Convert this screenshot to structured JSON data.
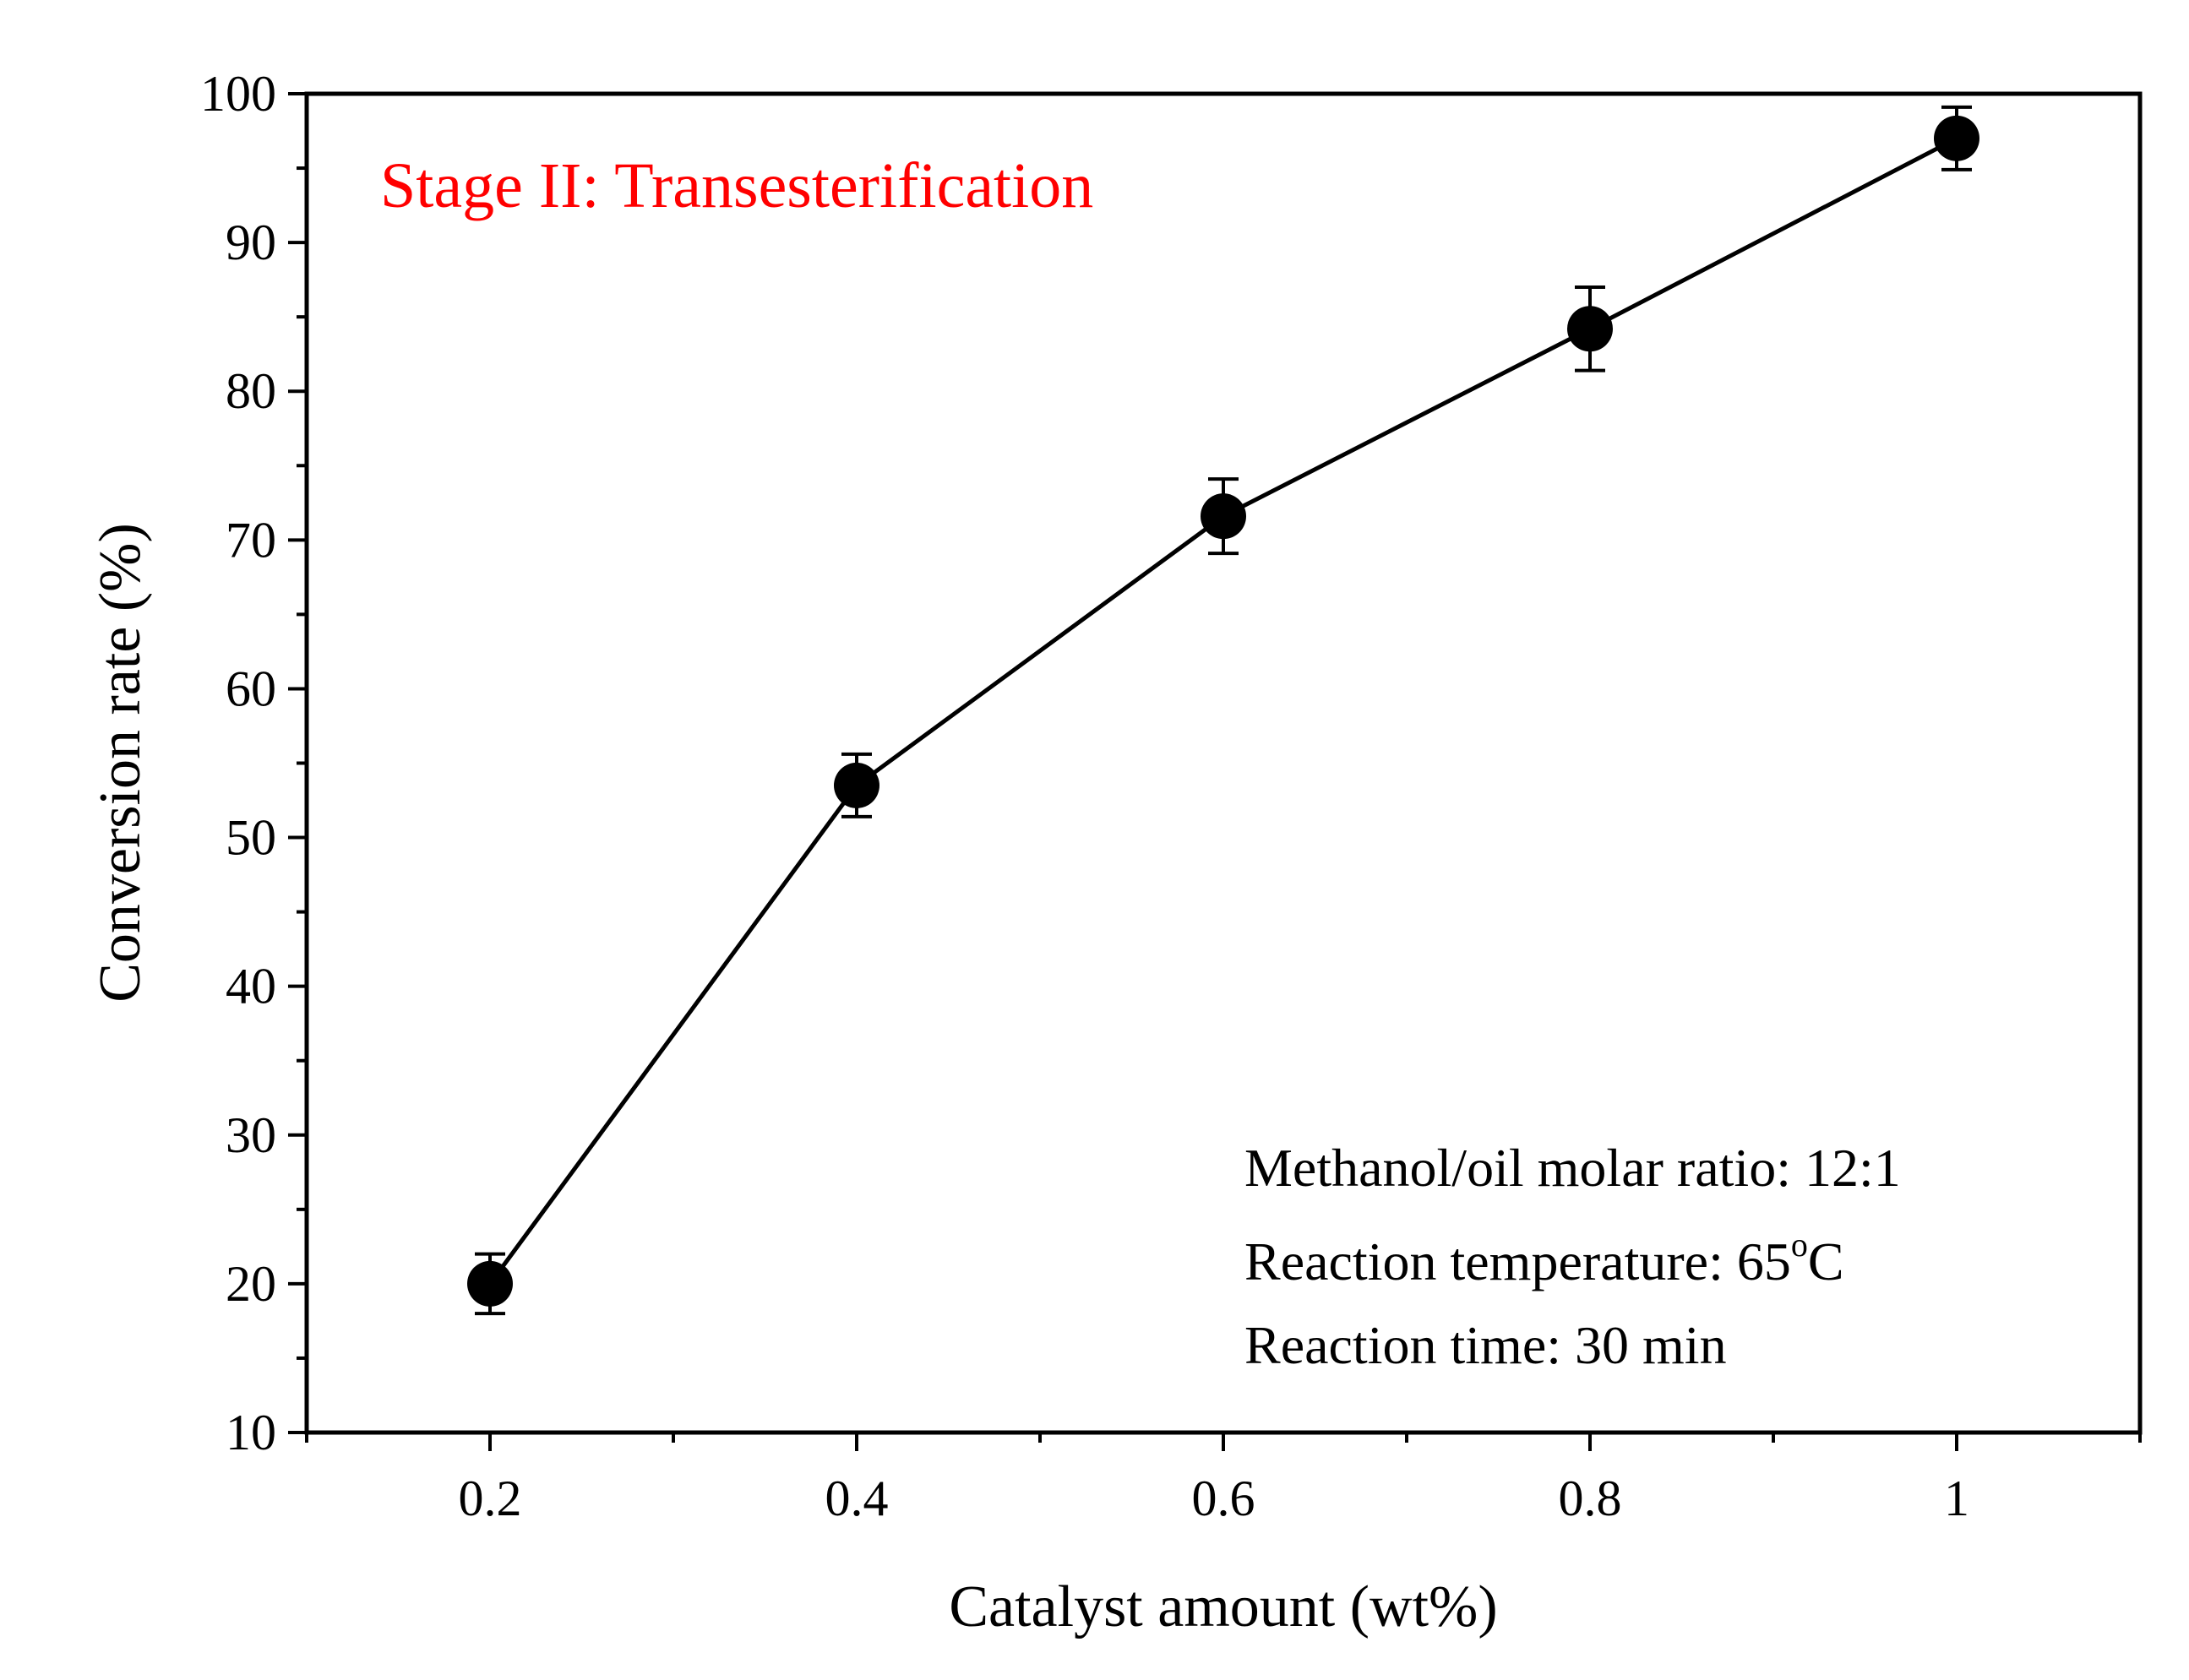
{
  "chart_data": {
    "type": "line",
    "xlabel": "Catalyst amount (wt%)",
    "ylabel": "Conversion rate (%)",
    "xlim": [
      0.1,
      1.1
    ],
    "ylim": [
      10,
      100
    ],
    "x_ticks": [
      "0.2",
      "0.4",
      "0.6",
      "0.8",
      "1"
    ],
    "x_tick_values": [
      0.2,
      0.4,
      0.6,
      0.8,
      1.0
    ],
    "y_ticks": [
      "10",
      "20",
      "30",
      "40",
      "50",
      "60",
      "70",
      "80",
      "90",
      "100"
    ],
    "y_tick_values": [
      10,
      20,
      30,
      40,
      50,
      60,
      70,
      80,
      90,
      100
    ],
    "series": [
      {
        "name": "Conversion rate",
        "x": [
          0.2,
          0.4,
          0.6,
          0.8,
          1.0
        ],
        "values": [
          20,
          53.5,
          71.6,
          84.2,
          97.0
        ],
        "error": [
          2.0,
          2.1,
          2.5,
          2.8,
          2.1
        ]
      }
    ],
    "annotations": {
      "stage": "Stage II: Transesterification",
      "ratio": "Methanol/oil molar ratio: 12:1",
      "temp_prefix": "Reaction temperature: 65",
      "temp_degree": "o",
      "temp_unit": "C",
      "time": "Reaction time: 30 min"
    },
    "colors": {
      "stage": "#ff0000",
      "line": "#000000",
      "marker": "#000000"
    }
  }
}
